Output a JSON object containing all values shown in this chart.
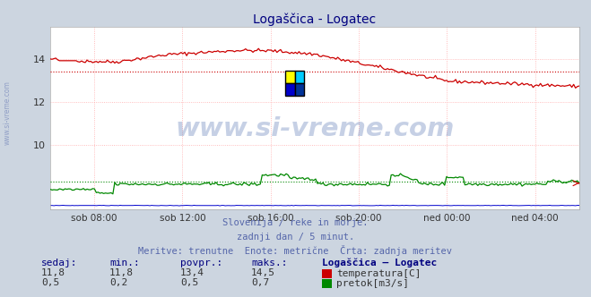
{
  "title": "Logaščica - Logatec",
  "title_color": "#000080",
  "bg_color": "#ccd5e0",
  "plot_bg_color": "#ffffff",
  "grid_color": "#ffaaaa",
  "x_ticks_labels": [
    "sob 08:00",
    "sob 12:00",
    "sob 16:00",
    "sob 20:00",
    "ned 00:00",
    "ned 04:00"
  ],
  "x_ticks_pos": [
    0.0833,
    0.25,
    0.4167,
    0.5833,
    0.75,
    0.9167
  ],
  "ylim": [
    7.0,
    15.5
  ],
  "yticks": [
    10,
    12,
    14
  ],
  "temp_color": "#cc0000",
  "flow_color": "#008800",
  "height_color": "#0000cc",
  "avg_temp": 13.4,
  "avg_flow_scaled": 7.55,
  "footer_line1": "Slovenija / reke in morje.",
  "footer_line2": "zadnji dan / 5 minut.",
  "footer_line3": "Meritve: trenutne  Enote: metrične  Črta: zadnja meritev",
  "footer_color": "#5566aa",
  "footer_fontsize": 7.5,
  "table_color": "#000080",
  "table_headers": [
    "sedaj:",
    "min.:",
    "povpr.:",
    "maks.:",
    "Logaščica – Logatec"
  ],
  "table_values_temp": [
    "11,8",
    "11,8",
    "13,4",
    "14,5"
  ],
  "table_values_flow": [
    "0,5",
    "0,2",
    "0,5",
    "0,7"
  ],
  "label_temp": "temperatura[C]",
  "label_flow": "pretok[m3/s]",
  "watermark": "www.si-vreme.com",
  "watermark_color": "#4466aa",
  "watermark_alpha": 0.3,
  "sidewatermark_color": "#7788bb"
}
